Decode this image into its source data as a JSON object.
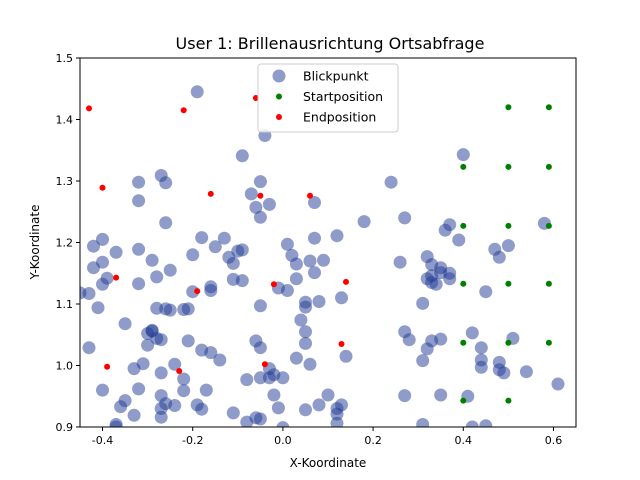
{
  "chart_data": {
    "type": "scatter",
    "title": "User 1: Brillenausrichtung Ortsabfrage",
    "xlabel": "X-Koordinate",
    "ylabel": "Y-Koordinate",
    "xlim": [
      -0.45,
      0.65
    ],
    "ylim": [
      0.9,
      1.5
    ],
    "xticks": [
      "-0.4",
      "-0.2",
      "0.0",
      "0.2",
      "0.4",
      "0.6"
    ],
    "yticks": [
      "0.9",
      "1.0",
      "1.1",
      "1.2",
      "1.3",
      "1.4",
      "1.5"
    ],
    "grid": false,
    "legend_position": "top-center",
    "series": [
      {
        "name": "Blickpunkt",
        "color": "#1f3a93",
        "opacity": 0.5,
        "marker": "large-circle",
        "points": [
          [
            -0.42,
            1.194
          ],
          [
            -0.4,
            1.205
          ],
          [
            -0.42,
            1.159
          ],
          [
            -0.4,
            1.168
          ],
          [
            -0.37,
            1.184
          ],
          [
            -0.32,
            1.189
          ],
          [
            -0.29,
            1.171
          ],
          [
            -0.28,
            1.144
          ],
          [
            -0.35,
            1.068
          ],
          [
            -0.4,
            1.132
          ],
          [
            -0.39,
            1.142
          ],
          [
            -0.41,
            1.094
          ],
          [
            -0.43,
            1.117
          ],
          [
            -0.32,
            1.133
          ],
          [
            -0.26,
            1.232
          ],
          [
            -0.32,
            1.268
          ],
          [
            -0.32,
            1.298
          ],
          [
            -0.27,
            1.309
          ],
          [
            -0.26,
            1.297
          ],
          [
            -0.19,
            1.445
          ],
          [
            -0.09,
            1.341
          ],
          [
            -0.04,
            1.374
          ],
          [
            -0.07,
            1.279
          ],
          [
            -0.05,
            1.299
          ],
          [
            -0.03,
            1.262
          ],
          [
            -0.06,
            1.257
          ],
          [
            -0.05,
            1.241
          ],
          [
            -0.18,
            1.208
          ],
          [
            -0.2,
            1.18
          ],
          [
            -0.25,
            1.155
          ],
          [
            -0.15,
            1.193
          ],
          [
            -0.13,
            1.207
          ],
          [
            -0.1,
            1.186
          ],
          [
            -0.12,
            1.176
          ],
          [
            -0.11,
            1.166
          ],
          [
            -0.09,
            1.188
          ],
          [
            -0.11,
            1.14
          ],
          [
            -0.09,
            1.138
          ],
          [
            -0.16,
            1.128
          ],
          [
            -0.16,
            1.122
          ],
          [
            -0.2,
            1.12
          ],
          [
            -0.21,
            1.092
          ],
          [
            -0.22,
            1.091
          ],
          [
            -0.25,
            1.09
          ],
          [
            -0.26,
            1.092
          ],
          [
            -0.28,
            1.093
          ],
          [
            -0.29,
            1.056
          ],
          [
            -0.29,
            1.057
          ],
          [
            -0.3,
            1.052
          ],
          [
            -0.3,
            1.033
          ],
          [
            -0.28,
            1.044
          ],
          [
            -0.27,
            1.042
          ],
          [
            -0.21,
            1.04
          ],
          [
            -0.18,
            1.025
          ],
          [
            -0.16,
            1.021
          ],
          [
            -0.14,
            1.009
          ],
          [
            -0.24,
            1.002
          ],
          [
            -0.27,
            0.988
          ],
          [
            -0.31,
            1.003
          ],
          [
            -0.33,
            0.995
          ],
          [
            -0.43,
            1.029
          ],
          [
            -0.4,
            0.96
          ],
          [
            -0.35,
            0.943
          ],
          [
            -0.36,
            0.933
          ],
          [
            -0.32,
            0.962
          ],
          [
            -0.27,
            0.951
          ],
          [
            -0.26,
            0.938
          ],
          [
            -0.27,
            0.93
          ],
          [
            -0.27,
            0.916
          ],
          [
            -0.33,
            0.919
          ],
          [
            -0.37,
            0.904
          ],
          [
            -0.37,
            0.9
          ],
          [
            -0.22,
            0.978
          ],
          [
            -0.22,
            0.959
          ],
          [
            -0.24,
            0.935
          ],
          [
            -0.19,
            0.936
          ],
          [
            -0.18,
            0.929
          ],
          [
            -0.17,
            0.96
          ],
          [
            -0.08,
            0.977
          ],
          [
            -0.05,
            1.097
          ],
          [
            -0.06,
            1.04
          ],
          [
            -0.05,
            1.029
          ],
          [
            -0.05,
            0.98
          ],
          [
            -0.03,
            0.995
          ],
          [
            -0.03,
            0.98
          ],
          [
            -0.02,
            0.985
          ],
          [
            0.0,
            0.98
          ],
          [
            -0.02,
            0.952
          ],
          [
            -0.01,
            0.931
          ],
          [
            -0.06,
            0.915
          ],
          [
            -0.11,
            0.923
          ],
          [
            -0.08,
            0.908
          ],
          [
            -0.05,
            0.913
          ],
          [
            0.0,
            0.899
          ],
          [
            0.01,
            1.122
          ],
          [
            -0.01,
            1.126
          ],
          [
            0.01,
            1.197
          ],
          [
            0.02,
            1.179
          ],
          [
            0.03,
            1.165
          ],
          [
            0.03,
            1.141
          ],
          [
            0.05,
            1.103
          ],
          [
            0.05,
            1.095
          ],
          [
            0.04,
            1.074
          ],
          [
            0.05,
            1.055
          ],
          [
            0.05,
            1.036
          ],
          [
            0.03,
            1.012
          ],
          [
            0.06,
            1.002
          ],
          [
            0.07,
            1.151
          ],
          [
            0.07,
            1.207
          ],
          [
            0.07,
            1.265
          ],
          [
            0.06,
            1.17
          ],
          [
            0.09,
            1.171
          ],
          [
            0.08,
            1.104
          ],
          [
            0.12,
            1.211
          ],
          [
            0.13,
            1.11
          ],
          [
            0.14,
            1.015
          ],
          [
            0.1,
            0.952
          ],
          [
            0.08,
            0.936
          ],
          [
            0.12,
            0.93
          ],
          [
            0.12,
            0.921
          ],
          [
            0.12,
            0.906
          ],
          [
            0.13,
            0.936
          ],
          [
            0.05,
            0.928
          ],
          [
            0.18,
            1.234
          ],
          [
            0.24,
            1.298
          ],
          [
            0.27,
            1.24
          ],
          [
            0.26,
            1.168
          ],
          [
            0.27,
            1.055
          ],
          [
            0.28,
            1.042
          ],
          [
            0.27,
            0.951
          ],
          [
            0.33,
            1.164
          ],
          [
            0.33,
            1.146
          ],
          [
            0.33,
            1.135
          ],
          [
            0.32,
            1.141
          ],
          [
            0.34,
            1.132
          ],
          [
            0.32,
            1.177
          ],
          [
            0.35,
            1.159
          ],
          [
            0.35,
            1.151
          ],
          [
            0.37,
            1.15
          ],
          [
            0.37,
            1.141
          ],
          [
            0.37,
            1.229
          ],
          [
            0.36,
            1.22
          ],
          [
            0.39,
            1.204
          ],
          [
            0.4,
            1.343
          ],
          [
            0.42,
            1.053
          ],
          [
            0.44,
            1.029
          ],
          [
            0.44,
            1.009
          ],
          [
            0.44,
            0.997
          ],
          [
            0.45,
            1.12
          ],
          [
            0.47,
            1.189
          ],
          [
            0.5,
            1.195
          ],
          [
            0.48,
            1.176
          ],
          [
            0.48,
            1.005
          ],
          [
            0.48,
            0.993
          ],
          [
            0.49,
            0.988
          ],
          [
            0.51,
            1.044
          ],
          [
            0.54,
            0.99
          ],
          [
            0.58,
            1.231
          ],
          [
            0.61,
            0.97
          ],
          [
            0.32,
            1.027
          ],
          [
            0.33,
            1.04
          ],
          [
            0.35,
            1.043
          ],
          [
            0.31,
            1.008
          ],
          [
            0.35,
            0.952
          ],
          [
            0.41,
            0.95
          ],
          [
            0.31,
            1.101
          ],
          [
            0.42,
            0.9
          ],
          [
            0.45,
            0.902
          ],
          [
            -0.45,
            1.118
          ],
          [
            0.31,
            0.904
          ]
        ]
      },
      {
        "name": "Startposition",
        "color": "#008000",
        "marker": "small-dot",
        "points": [
          [
            0.5,
            1.42
          ],
          [
            0.59,
            1.42
          ],
          [
            0.4,
            1.323
          ],
          [
            0.5,
            1.323
          ],
          [
            0.59,
            1.323
          ],
          [
            0.4,
            1.227
          ],
          [
            0.5,
            1.227
          ],
          [
            0.59,
            1.227
          ],
          [
            0.4,
            1.133
          ],
          [
            0.5,
            1.133
          ],
          [
            0.59,
            1.133
          ],
          [
            0.4,
            1.037
          ],
          [
            0.5,
            1.037
          ],
          [
            0.59,
            1.037
          ],
          [
            0.4,
            0.943
          ],
          [
            0.5,
            0.943
          ]
        ]
      },
      {
        "name": "Endposition",
        "color": "#ff0000",
        "marker": "small-dot",
        "points": [
          [
            -0.43,
            1.418
          ],
          [
            -0.22,
            1.415
          ],
          [
            -0.06,
            1.435
          ],
          [
            -0.4,
            1.289
          ],
          [
            -0.16,
            1.279
          ],
          [
            -0.05,
            1.276
          ],
          [
            0.06,
            1.276
          ],
          [
            -0.37,
            1.143
          ],
          [
            -0.19,
            1.121
          ],
          [
            -0.02,
            1.132
          ],
          [
            0.14,
            1.136
          ],
          [
            -0.39,
            0.998
          ],
          [
            -0.23,
            0.991
          ],
          [
            -0.04,
            1.002
          ],
          [
            0.13,
            1.035
          ]
        ]
      }
    ]
  }
}
